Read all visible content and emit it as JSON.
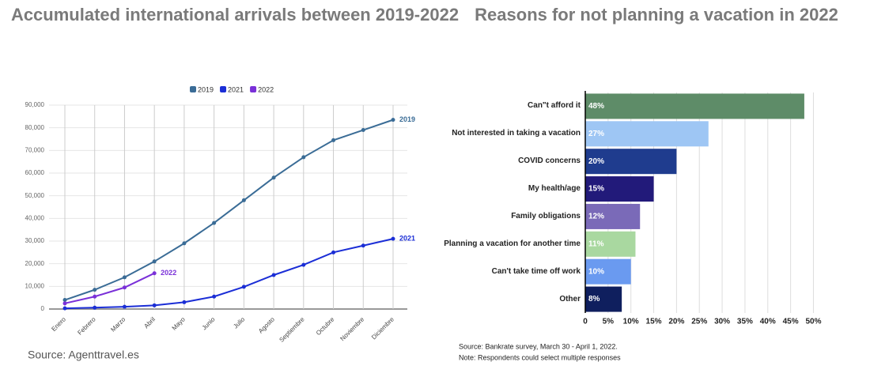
{
  "chart_data": [
    {
      "type": "line",
      "title": "Accumulated international arrivals between 2019-2022",
      "source": "Source: Agenttravel.es",
      "categories": [
        "Enero",
        "Febrero",
        "Marzo",
        "Abril",
        "Mayo",
        "Junio",
        "Julio",
        "Agosto",
        "Septiembre",
        "Octubre",
        "Noviembre",
        "Diciembre"
      ],
      "series": [
        {
          "name": "2019",
          "color": "#3a6c96",
          "values": [
            4000,
            8500,
            14000,
            21000,
            29000,
            38000,
            48000,
            58000,
            67000,
            74500,
            79000,
            83500
          ]
        },
        {
          "name": "2021",
          "color": "#1b2ed6",
          "values": [
            300,
            600,
            1000,
            1600,
            3000,
            5500,
            9800,
            15000,
            19500,
            25000,
            28000,
            31000
          ]
        },
        {
          "name": "2022",
          "color": "#7a30d8",
          "values": [
            2500,
            5500,
            9500,
            15800,
            null,
            null,
            null,
            null,
            null,
            null,
            null,
            null
          ]
        }
      ],
      "ylim": [
        0,
        90000
      ],
      "yticks": [
        0,
        {
          "value": 10000,
          "label": "10,000"
        },
        {
          "value": 20000,
          "label": "20,000"
        },
        {
          "value": 30000,
          "label": "30,000"
        },
        {
          "value": 40000,
          "label": "40,000"
        },
        {
          "value": 50000,
          "label": "50,000"
        },
        {
          "value": 60000,
          "label": "60,000"
        },
        {
          "value": 70000,
          "label": "70,000"
        },
        {
          "value": 80000,
          "label": "80,000"
        },
        {
          "value": 90000,
          "label": "90,000"
        }
      ],
      "grid": true
    },
    {
      "type": "hbar",
      "title": "Reasons for not planning a vacation in 2022",
      "notes": [
        "Source: Bankrate survey, March 30 - April 1, 2022.",
        "Note: Respondents could select multiple responses"
      ],
      "categories": [
        "Can\"t afford it",
        "Not interested in taking a vacation",
        "COVID concerns",
        "My health/age",
        "Family obligations",
        "Planning a vacation for another time",
        "Can't take time off work",
        "Other"
      ],
      "values": [
        48,
        27,
        20,
        15,
        12,
        11,
        10,
        8
      ],
      "value_labels": [
        "48%",
        "27%",
        "20%",
        "15%",
        "12%",
        "11%",
        "10%",
        "8%"
      ],
      "colors": [
        "#5e8c68",
        "#9ec6f4",
        "#1f3c8e",
        "#221a7a",
        "#7a6ab8",
        "#a9d8a0",
        "#6a9af0",
        "#0f1f5e"
      ],
      "xlim": [
        0,
        52
      ],
      "xticks": [
        0,
        {
          "value": 5,
          "label": "5%"
        },
        {
          "value": 10,
          "label": "10%"
        },
        {
          "value": 15,
          "label": "15%"
        },
        {
          "value": 20,
          "label": "20%"
        },
        {
          "value": 25,
          "label": "25%"
        },
        {
          "value": 30,
          "label": "30%"
        },
        {
          "value": 35,
          "label": "35%"
        },
        {
          "value": 40,
          "label": "40%"
        },
        {
          "value": 45,
          "label": "45%"
        },
        {
          "value": 50,
          "label": "50%"
        }
      ],
      "grid": true
    }
  ]
}
